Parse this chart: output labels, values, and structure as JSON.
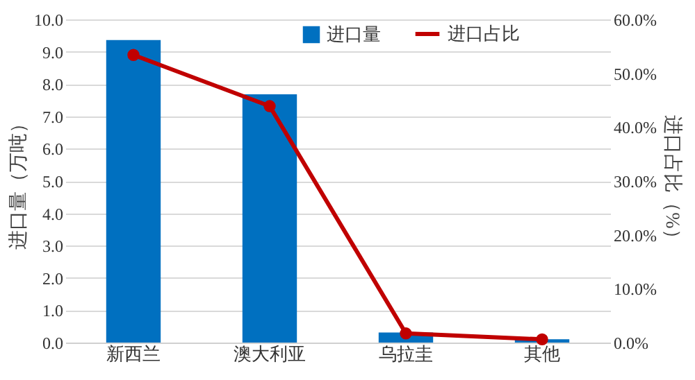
{
  "chart_data": {
    "type": "bar",
    "categories": [
      "新西兰",
      "澳大利亚",
      "乌拉圭",
      "其他"
    ],
    "series": [
      {
        "name": "进口量",
        "color": "#0070c0",
        "values": [
          9.36,
          7.68,
          0.31,
          0.1
        ]
      },
      {
        "name": "进口占比",
        "type": "line",
        "axis": "y2",
        "color": "#c00000",
        "values": [
          53.4,
          43.9,
          1.7,
          0.6
        ]
      }
    ],
    "ylabel": "进口量（万吨）",
    "y2label": "进口占比（%）",
    "ylim": [
      0,
      10
    ],
    "yticks": [
      {
        "value": 0,
        "label": "0.0"
      },
      {
        "value": 1,
        "label": "1.0"
      },
      {
        "value": 2,
        "label": "2.0"
      },
      {
        "value": 3,
        "label": "3.0"
      },
      {
        "value": 4,
        "label": "4.0"
      },
      {
        "value": 5,
        "label": "5.0"
      },
      {
        "value": 6,
        "label": "6.0"
      },
      {
        "value": 7,
        "label": "7.0"
      },
      {
        "value": 8,
        "label": "8.0"
      },
      {
        "value": 9,
        "label": "9.0"
      },
      {
        "value": 10,
        "label": "10.0"
      }
    ],
    "y2lim": [
      0,
      60
    ],
    "y2ticks": [
      {
        "value": 0,
        "label": "0.0%"
      },
      {
        "value": 10,
        "label": "10.0%"
      },
      {
        "value": 20,
        "label": "20.0%"
      },
      {
        "value": 30,
        "label": "30.0%"
      },
      {
        "value": 40,
        "label": "40.0%"
      },
      {
        "value": 50,
        "label": "50.0%"
      },
      {
        "value": 60,
        "label": "60.0%"
      }
    ],
    "grid": "y",
    "legend": "top right",
    "marker": "circle",
    "line_style": "solid"
  }
}
